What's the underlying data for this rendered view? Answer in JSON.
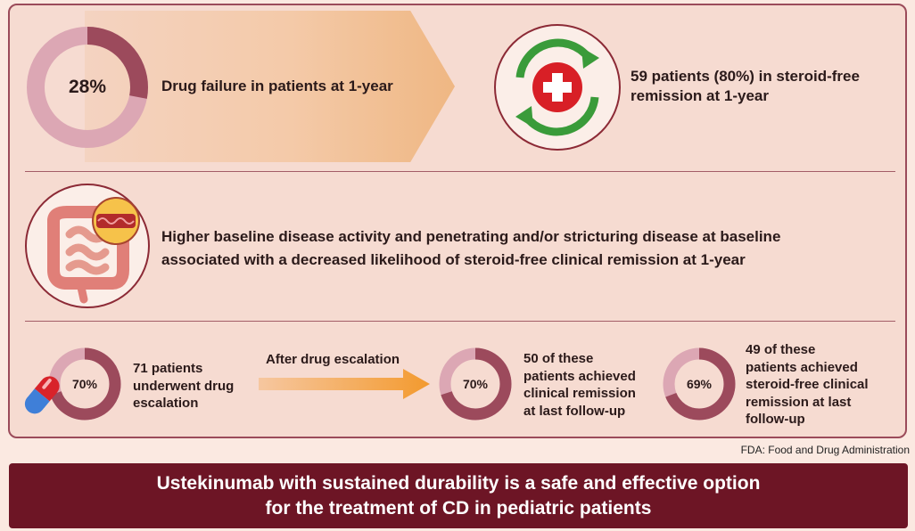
{
  "row1": {
    "donut_percent": 28,
    "donut_label": "28%",
    "text": "Drug failure in patients at 1-year",
    "remission_text_line1": "59 patients (80%) in steroid-free",
    "remission_text_line2": "remission at 1-year"
  },
  "row2": {
    "text_line1": "Higher baseline disease activity and penetrating and/or stricturing disease at baseline",
    "text_line2": "associated with a decreased likelihood of steroid-free clinical remission at 1-year"
  },
  "row3": {
    "donut1": {
      "percent": 70,
      "label": "70%"
    },
    "text1_line1": "71 patients",
    "text1_line2": "underwent drug",
    "text1_line3": "escalation",
    "arrow_label": "After drug escalation",
    "donut2": {
      "percent": 70,
      "label": "70%"
    },
    "text2_line1": "50 of these",
    "text2_line2": "patients achieved",
    "text2_line3": "clinical remission",
    "text2_line4": "at last follow-up",
    "donut3": {
      "percent": 69,
      "label": "69%"
    },
    "text3_line1": "49 of these",
    "text3_line2": "patients achieved",
    "text3_line3": "steroid-free clinical",
    "text3_line4": "remission at last",
    "text3_line5": "follow-up"
  },
  "footnote": "FDA: Food and Drug Administration",
  "banner": {
    "line1": "Ustekinumab with sustained durability is a safe and effective option",
    "line2": "for the treatment of CD in pediatric patients"
  },
  "colors": {
    "donut_fill": "#9c4a5c",
    "donut_track": "#dca7b4",
    "banner": "#6d1525",
    "arrow": "#f39a2e"
  },
  "icons": [
    "medical-cross-icon",
    "refresh-cycle-icon",
    "intestine-icon",
    "capsule-pill-icon"
  ]
}
